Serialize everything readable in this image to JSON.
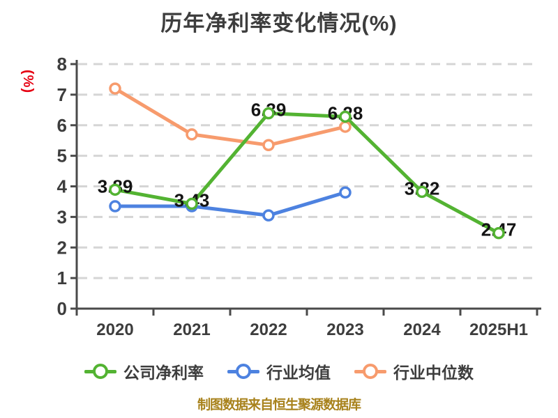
{
  "title": {
    "text": "历年净利率变化情况(%)",
    "color": "#3d3d3d"
  },
  "y_axis_unit": {
    "text": "(%)",
    "color": "#e60012"
  },
  "footer": {
    "text": "制图数据来自恒生聚源数据库",
    "color": "#a8821c"
  },
  "chart_data": {
    "type": "line",
    "title": "历年净利率变化情况(%)",
    "categories": [
      "2020",
      "2021",
      "2022",
      "2023",
      "2024",
      "2025H1"
    ],
    "series": [
      {
        "name": "行业中位数",
        "color": "#f79b6d",
        "values": [
          7.2,
          5.7,
          5.35,
          5.95
        ],
        "point_labels": []
      },
      {
        "name": "行业均值",
        "color": "#4d82e0",
        "values": [
          3.35,
          3.35,
          3.05,
          3.8
        ],
        "point_labels": []
      },
      {
        "name": "公司净利率",
        "color": "#53b332",
        "values": [
          3.89,
          3.43,
          6.39,
          6.28,
          3.82,
          2.47
        ],
        "point_labels": [
          "3.89",
          "3.43",
          "6.39",
          "6.28",
          "3.82",
          "2.47"
        ]
      }
    ],
    "legend_order": [
      "公司净利率",
      "行业均值",
      "行业中位数"
    ],
    "ylim": [
      0,
      8
    ],
    "yticks": [
      "0",
      "1",
      "2",
      "3",
      "4",
      "5",
      "6",
      "7",
      "8"
    ],
    "grid": {
      "horizontal": true,
      "style": "dashed",
      "color": "#d5d5d5"
    },
    "axis_color": "#4a4a4a",
    "tick_label_color": "#3d3d3d",
    "data_label_color": "#141414",
    "legend_position": "bottom"
  }
}
